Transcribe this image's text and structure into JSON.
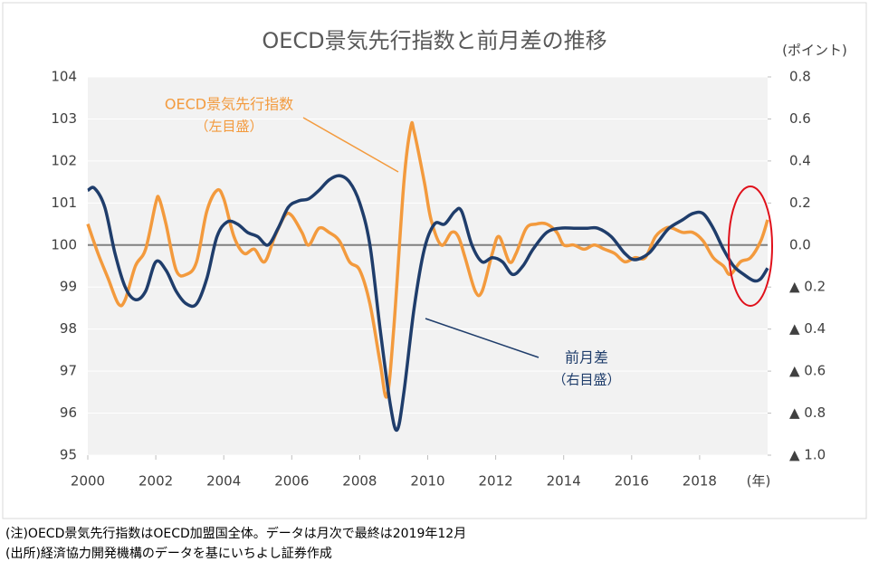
{
  "chart_data": {
    "type": "line",
    "title": "OECD景気先行指数と前月差の推移",
    "y2_unit": "(ポイント)",
    "x_unit": "(年)",
    "xlim": [
      2000,
      2020
    ],
    "xticks": [
      2000,
      2002,
      2004,
      2006,
      2008,
      2010,
      2012,
      2014,
      2016,
      2018
    ],
    "ylim": [
      95,
      104
    ],
    "yticks": [
      95,
      96,
      97,
      98,
      99,
      100,
      101,
      102,
      103,
      104
    ],
    "y2lim": [
      -1.0,
      0.8
    ],
    "y2ticks": [
      {
        "value": -1.0,
        "label": "▲ 1.0"
      },
      {
        "value": -0.8,
        "label": "▲ 0.8"
      },
      {
        "value": -0.6,
        "label": "▲ 0.6"
      },
      {
        "value": -0.4,
        "label": "▲ 0.4"
      },
      {
        "value": -0.2,
        "label": "▲ 0.2"
      },
      {
        "value": 0,
        "label": "0.0"
      },
      0.2,
      0.4,
      0.6,
      0.8
    ],
    "grid": true,
    "series": [
      {
        "name": "OECD景気先行指数",
        "name_note": "（左目盛）",
        "color": "#f39a3d",
        "axis": "y",
        "x": [
          2000.0,
          2000.3,
          2000.6,
          2000.9,
          2001.1,
          2001.4,
          2001.7,
          2002.0,
          2002.1,
          2002.3,
          2002.6,
          2002.9,
          2003.2,
          2003.5,
          2003.8,
          2004.0,
          2004.3,
          2004.6,
          2004.9,
          2005.2,
          2005.5,
          2005.8,
          2006.0,
          2006.3,
          2006.5,
          2006.8,
          2007.1,
          2007.4,
          2007.7,
          2008.0,
          2008.3,
          2008.6,
          2008.8,
          2009.0,
          2009.3,
          2009.5,
          2009.6,
          2009.9,
          2010.1,
          2010.4,
          2010.7,
          2010.9,
          2011.1,
          2011.4,
          2011.6,
          2011.9,
          2012.1,
          2012.4,
          2012.6,
          2012.9,
          2013.2,
          2013.5,
          2013.8,
          2014.0,
          2014.3,
          2014.6,
          2014.9,
          2015.2,
          2015.5,
          2015.8,
          2016.1,
          2016.4,
          2016.7,
          2017.0,
          2017.2,
          2017.5,
          2017.8,
          2018.1,
          2018.4,
          2018.7,
          2018.9,
          2019.2,
          2019.5,
          2019.8,
          2020.0
        ],
        "values": [
          100.5,
          99.8,
          99.2,
          98.6,
          98.7,
          99.5,
          99.9,
          101.0,
          101.1,
          100.5,
          99.4,
          99.3,
          99.6,
          100.8,
          101.3,
          101.1,
          100.2,
          99.8,
          99.9,
          99.6,
          100.2,
          100.7,
          100.7,
          100.3,
          100.0,
          100.4,
          100.3,
          100.1,
          99.6,
          99.4,
          98.6,
          97.2,
          96.4,
          98.0,
          101.5,
          102.8,
          102.7,
          101.5,
          100.6,
          100.0,
          100.3,
          100.2,
          99.7,
          98.9,
          98.9,
          99.8,
          100.2,
          99.6,
          99.8,
          100.4,
          100.5,
          100.5,
          100.3,
          100.0,
          100.0,
          99.9,
          100.0,
          99.9,
          99.8,
          99.6,
          99.7,
          99.7,
          100.2,
          100.4,
          100.4,
          100.3,
          100.3,
          100.1,
          99.7,
          99.5,
          99.3,
          99.6,
          99.7,
          100.1,
          100.6
        ]
      },
      {
        "name": "前月差",
        "name_note": "（右目盛）",
        "color": "#1f3d6b",
        "axis": "y2",
        "x": [
          2000.0,
          2000.2,
          2000.5,
          2000.8,
          2001.1,
          2001.4,
          2001.7,
          2002.0,
          2002.3,
          2002.6,
          2002.9,
          2003.2,
          2003.5,
          2003.8,
          2004.1,
          2004.4,
          2004.7,
          2005.0,
          2005.3,
          2005.6,
          2005.9,
          2006.2,
          2006.5,
          2006.8,
          2007.1,
          2007.4,
          2007.7,
          2008.0,
          2008.3,
          2008.6,
          2008.9,
          2009.1,
          2009.3,
          2009.6,
          2009.9,
          2010.2,
          2010.5,
          2010.8,
          2011.0,
          2011.3,
          2011.6,
          2011.9,
          2012.2,
          2012.5,
          2012.8,
          2013.1,
          2013.5,
          2013.9,
          2014.3,
          2014.7,
          2015.0,
          2015.4,
          2015.8,
          2016.1,
          2016.5,
          2016.8,
          2017.1,
          2017.5,
          2017.8,
          2018.1,
          2018.4,
          2018.7,
          2019.0,
          2019.3,
          2019.6,
          2019.8,
          2020.0
        ],
        "values": [
          0.26,
          0.27,
          0.18,
          -0.04,
          -0.2,
          -0.26,
          -0.22,
          -0.08,
          -0.12,
          -0.22,
          -0.28,
          -0.28,
          -0.16,
          0.04,
          0.11,
          0.1,
          0.06,
          0.04,
          0,
          0.08,
          0.18,
          0.21,
          0.22,
          0.26,
          0.31,
          0.33,
          0.3,
          0.2,
          0,
          -0.4,
          -0.76,
          -0.88,
          -0.7,
          -0.3,
          -0.02,
          0.1,
          0.1,
          0.16,
          0.16,
          0,
          -0.08,
          -0.06,
          -0.08,
          -0.14,
          -0.1,
          -0.02,
          0.06,
          0.08,
          0.08,
          0.08,
          0.08,
          0.04,
          -0.04,
          -0.07,
          -0.04,
          0.02,
          0.08,
          0.12,
          0.15,
          0.15,
          0.08,
          -0.02,
          -0.1,
          -0.14,
          -0.17,
          -0.16,
          -0.11
        ]
      }
    ],
    "notes": [
      "(注)OECD景気先行指数はOECD加盟国全体。データは月次で最終は2019年12月",
      "(出所)経済協力開発機構のデータを基にいちよし証券作成"
    ]
  }
}
